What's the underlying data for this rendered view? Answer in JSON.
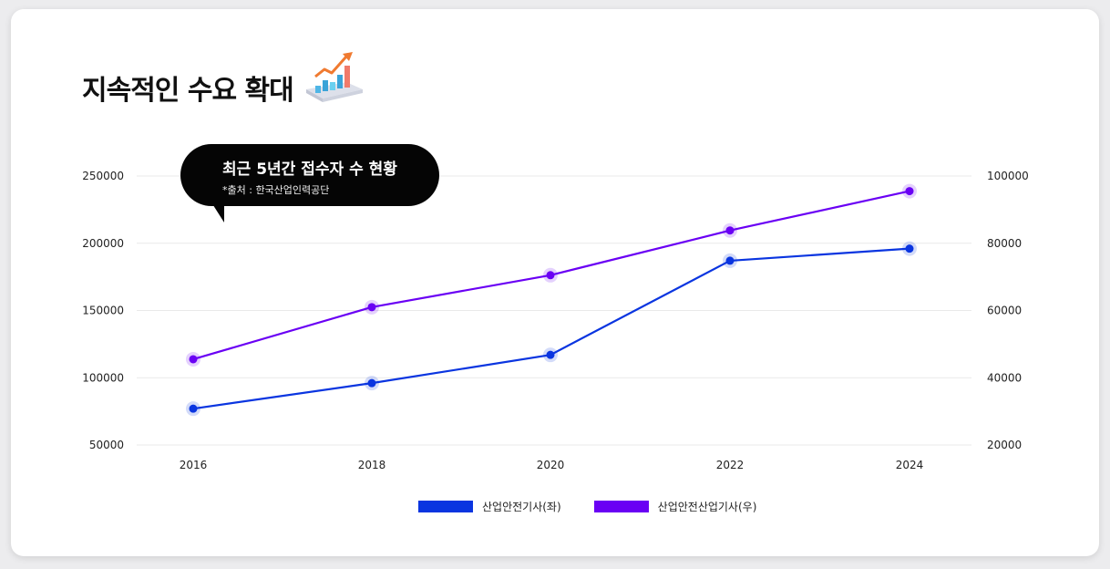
{
  "title": "지속적인 수요 확대",
  "bubble": {
    "title": "최근 5년간 접수자 수 현황",
    "source": "*출처 : 한국산업인력공단"
  },
  "icons": {
    "title_icon": "rising-bar-chart-icon"
  },
  "colors": {
    "series1": "#0a35e0",
    "series2": "#6a00f4",
    "grid": "#e9e9e9"
  },
  "chart_data": {
    "type": "line",
    "x": [
      "2016",
      "2018",
      "2020",
      "2022",
      "2024"
    ],
    "y_left": {
      "ticks": [
        "250000",
        "200000",
        "150000",
        "100000",
        "50000"
      ],
      "range": [
        50000,
        250000
      ]
    },
    "y_right": {
      "ticks": [
        "100000",
        "80000",
        "60000",
        "40000",
        "20000"
      ],
      "range": [
        20000,
        100000
      ]
    },
    "grid": true,
    "legend_position": "bottom",
    "series": [
      {
        "name": "산업안전기사(좌)",
        "axis": "left",
        "values": [
          77000,
          96000,
          117000,
          187000,
          196000
        ]
      },
      {
        "name": "산업안전산업기사(우)",
        "axis": "right",
        "values": [
          45500,
          61000,
          70500,
          83800,
          95500
        ]
      }
    ]
  }
}
